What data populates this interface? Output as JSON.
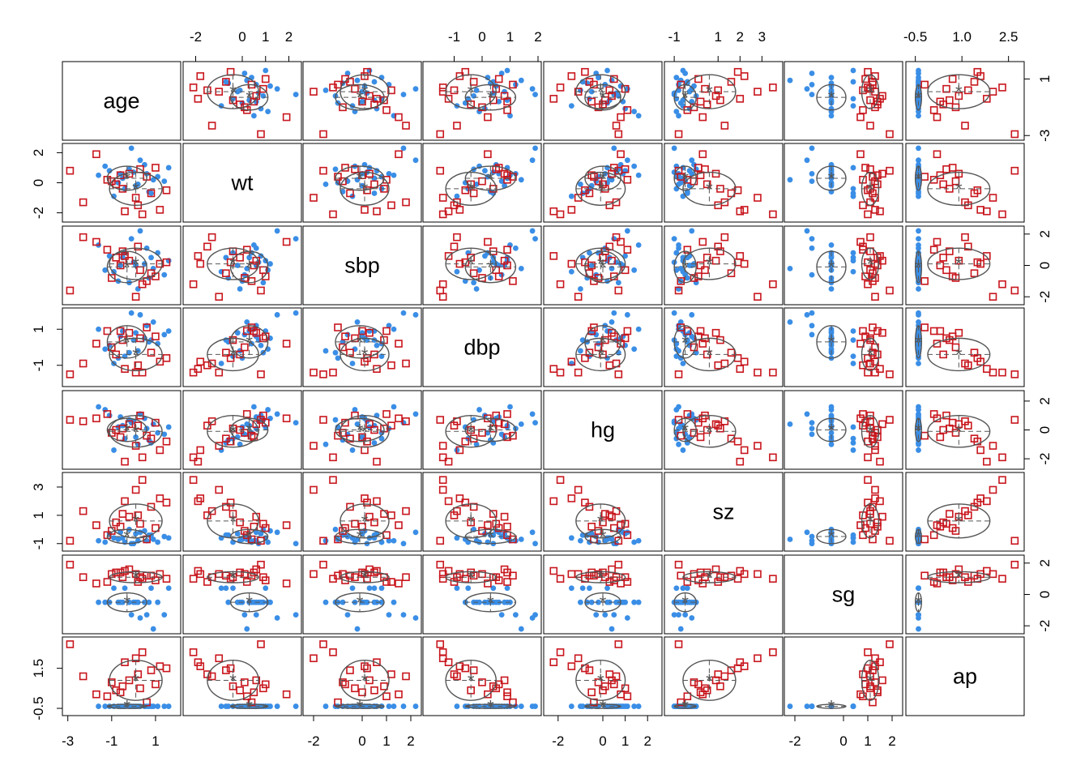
{
  "chart_data": {
    "type": "scatter",
    "title": "",
    "variables": [
      "age",
      "wt",
      "sbp",
      "dbp",
      "hg",
      "sz",
      "sg",
      "ap"
    ],
    "groups": [
      {
        "marker": "filled-circle",
        "color": "#3a8ee6"
      },
      {
        "marker": "open-square",
        "color": "#c8161d"
      }
    ],
    "axes": {
      "age": {
        "range": [
          -3.1,
          2.0
        ],
        "ticks": [
          "-3",
          "-1",
          "1"
        ],
        "tick_values": [
          -3,
          -1,
          1
        ]
      },
      "wt": {
        "range": [
          -2.4,
          2.4
        ],
        "ticks": [
          "-2",
          "0",
          "2"
        ],
        "tick_values": [
          -2,
          0,
          2
        ]
      },
      "sbp": {
        "range": [
          -2.3,
          2.3
        ],
        "ticks": [
          "-2",
          "0",
          "2"
        ],
        "tick_values": [
          -2,
          0,
          2
        ]
      },
      "dbp": {
        "range": [
          -2.0,
          2.0
        ],
        "ticks": [
          "-1",
          "1"
        ],
        "tick_values": [
          -1,
          1
        ]
      },
      "hg": {
        "range": [
          -2.5,
          2.5
        ],
        "ticks": [
          "-2",
          "0",
          "2"
        ],
        "tick_values": [
          -2,
          0,
          2
        ]
      },
      "sz": {
        "range": [
          -1.3,
          3.8
        ],
        "ticks": [
          "-1",
          "1",
          "3"
        ],
        "tick_values": [
          -1,
          1,
          3
        ]
      },
      "sg": {
        "range": [
          -2.3,
          2.3
        ],
        "ticks": [
          "-2",
          "0",
          "2"
        ],
        "tick_values": [
          -2,
          0,
          2
        ]
      },
      "ap": {
        "range": [
          -0.7,
          2.9
        ],
        "ticks": [
          "-0.5",
          "1.5"
        ],
        "tick_values": [
          -0.5,
          1.5
        ]
      }
    },
    "top_axis_ticks": {
      "wt": {
        "labels": [
          "-2",
          "0",
          "1",
          "2"
        ],
        "values": [
          -2,
          0,
          1,
          2
        ]
      },
      "dbp": {
        "labels": [
          "-1",
          "0",
          "1",
          "2"
        ],
        "values": [
          -1,
          0,
          1,
          2
        ]
      },
      "sz": {
        "labels": [
          "-1",
          "1",
          "2",
          "3"
        ],
        "values": [
          -1,
          1,
          2,
          3
        ]
      },
      "ap": {
        "labels": [
          "-0.5",
          "1.0",
          "2.5"
        ],
        "values": [
          -0.5,
          1.0,
          2.5
        ]
      }
    },
    "bottom_axis_ticks": {
      "age": {
        "labels": [
          "-3",
          "-1",
          "1"
        ],
        "values": [
          -3,
          -1,
          1
        ]
      },
      "sbp": {
        "labels": [
          "-2",
          "0",
          "1",
          "2"
        ],
        "values": [
          -2,
          0,
          1,
          2
        ]
      },
      "hg": {
        "labels": [
          "-2",
          "0",
          "1",
          "2"
        ],
        "values": [
          -2,
          0,
          1,
          2
        ]
      },
      "sg": {
        "labels": [
          "-2",
          "0",
          "1",
          "2"
        ],
        "values": [
          -2,
          0,
          1,
          2
        ]
      }
    },
    "left_axis_ticks": {
      "wt": {
        "labels": [
          "-2",
          "0",
          "2"
        ],
        "values": [
          -2,
          0,
          2
        ]
      },
      "dbp": {
        "labels": [
          "-1",
          "1"
        ],
        "values": [
          -1,
          1
        ]
      },
      "sz": {
        "labels": [
          "-1",
          "1",
          "3"
        ],
        "values": [
          -1,
          1,
          3
        ]
      },
      "ap": {
        "labels": [
          "-0.5",
          "1.5"
        ],
        "values": [
          -0.5,
          1.5
        ]
      }
    },
    "right_axis_ticks": {
      "age": {
        "labels": [
          "-3",
          "1"
        ],
        "values": [
          -3,
          1
        ]
      },
      "sbp": {
        "labels": [
          "-2",
          "0",
          "2"
        ],
        "values": [
          -2,
          0,
          2
        ]
      },
      "hg": {
        "labels": [
          "-2",
          "0",
          "2"
        ],
        "values": [
          -2,
          0,
          2
        ]
      },
      "sg": {
        "labels": [
          "-2",
          "0",
          "2"
        ],
        "values": [
          -2,
          0,
          2
        ]
      }
    },
    "group_means": [
      {
        "age": -0.3,
        "wt": 0.3,
        "sbp": -0.1,
        "dbp": 0.3,
        "hg": 0.0,
        "sz": -0.5,
        "sg": -0.5,
        "ap": -0.4
      },
      {
        "age": 0.1,
        "wt": -0.4,
        "sbp": 0.1,
        "dbp": -0.4,
        "hg": -0.1,
        "sz": 0.6,
        "sg": 1.1,
        "ap": 0.9
      }
    ],
    "group_sds": [
      {
        "age": 0.9,
        "wt": 0.8,
        "sbp": 1.0,
        "dbp": 0.9,
        "hg": 0.8,
        "sz": 0.5,
        "sg": 0.6,
        "ap": 0.1
      },
      {
        "age": 1.2,
        "wt": 1.1,
        "sbp": 1.0,
        "dbp": 0.9,
        "hg": 1.1,
        "sz": 1.2,
        "sg": 0.35,
        "ap": 1.0
      }
    ],
    "points": [
      [
        [
          -0.5,
          0.3,
          0.5,
          0.9,
          0.3,
          -0.6,
          -0.5,
          -0.4
        ],
        [
          -1.3,
          1.1,
          -0.3,
          -0.1,
          1.4,
          -0.9,
          -0.5,
          -0.4
        ],
        [
          0.1,
          -0.2,
          0.0,
          0.8,
          -0.5,
          -0.3,
          -0.5,
          -0.4
        ],
        [
          0.6,
          0.6,
          1.1,
          1.2,
          0.1,
          -0.8,
          -1.3,
          -0.4
        ],
        [
          -0.2,
          0.9,
          -1.1,
          -0.3,
          0.7,
          0.0,
          -0.5,
          -0.4
        ],
        [
          0.8,
          -0.7,
          0.5,
          0.4,
          -0.9,
          -0.4,
          0.4,
          -0.4
        ],
        [
          -0.7,
          0.0,
          -1.0,
          -0.6,
          0.2,
          -0.7,
          -0.5,
          -0.4
        ],
        [
          0.3,
          1.5,
          2.2,
          1.8,
          1.1,
          -0.2,
          -1.5,
          -0.4
        ],
        [
          1.1,
          0.4,
          0.8,
          0.2,
          -0.2,
          -0.9,
          -0.5,
          -0.4
        ],
        [
          -0.9,
          -0.9,
          -0.4,
          -0.9,
          -1.4,
          -0.6,
          0.4,
          -0.4
        ],
        [
          0.0,
          0.7,
          0.2,
          0.4,
          0.6,
          -1.0,
          -0.5,
          -0.4
        ],
        [
          1.4,
          0.1,
          -0.6,
          0.7,
          -0.3,
          -0.5,
          -1.3,
          -0.4
        ],
        [
          -1.6,
          0.5,
          1.3,
          1.0,
          1.6,
          -0.8,
          -0.5,
          -0.4
        ],
        [
          0.5,
          1.2,
          0.1,
          0.5,
          0.8,
          -0.1,
          -0.5,
          -0.4
        ],
        [
          -0.4,
          -0.4,
          0.8,
          -0.5,
          -0.6,
          -0.9,
          0.4,
          -0.4
        ],
        [
          0.9,
          0.2,
          -0.2,
          1.4,
          0.4,
          -0.7,
          -2.2,
          -0.4
        ],
        [
          -1.1,
          0.8,
          0.6,
          0.1,
          1.0,
          -0.3,
          -0.5,
          -0.4
        ],
        [
          0.2,
          -0.1,
          -1.5,
          -0.2,
          -1.0,
          -0.8,
          -0.5,
          -0.4
        ],
        [
          1.6,
          1.0,
          0.3,
          0.9,
          0.2,
          -0.6,
          0.4,
          -0.4
        ],
        [
          -0.1,
          2.3,
          1.7,
          1.9,
          0.5,
          -1.0,
          -1.3,
          -0.4
        ],
        [
          0.7,
          -0.6,
          -0.8,
          0.3,
          -0.7,
          -0.4,
          -0.5,
          -0.4
        ],
        [
          -0.6,
          0.6,
          0.0,
          0.6,
          0.9,
          -0.2,
          -0.5,
          -0.4
        ]
      ],
      [
        [
          -2.9,
          0.8,
          -1.6,
          -1.5,
          0.7,
          -0.8,
          1.9,
          2.7
        ],
        [
          -0.5,
          -0.4,
          0.9,
          0.4,
          0.1,
          1.1,
          1.1,
          0.6
        ],
        [
          1.2,
          -1.8,
          0.1,
          -0.8,
          -1.4,
          2.2,
          1.3,
          1.6
        ],
        [
          -1.7,
          1.9,
          1.5,
          0.2,
          0.8,
          0.3,
          0.7,
          0.2
        ],
        [
          0.4,
          -2.1,
          -1.2,
          -1.4,
          -1.9,
          3.5,
          1.0,
          2.3
        ],
        [
          -0.2,
          0.6,
          0.3,
          0.8,
          0.4,
          0.9,
          1.6,
          0.9
        ],
        [
          0.8,
          -0.7,
          -0.5,
          -0.3,
          -0.6,
          1.6,
          1.2,
          1.4
        ],
        [
          -1.2,
          0.2,
          1.0,
          0.9,
          1.1,
          -0.4,
          0.8,
          0.1
        ],
        [
          0.1,
          -1.0,
          -2.0,
          -1.4,
          -1.1,
          2.8,
          1.3,
          2.0
        ],
        [
          -0.8,
          -0.1,
          0.5,
          -0.4,
          0.0,
          0.5,
          1.4,
          0.4
        ],
        [
          1.0,
          1.0,
          -0.7,
          0.6,
          0.5,
          0.1,
          0.9,
          0.7
        ],
        [
          -2.3,
          -1.3,
          1.8,
          -0.9,
          0.6,
          1.3,
          1.1,
          1.1
        ],
        [
          0.6,
          0.4,
          -1.0,
          1.1,
          -0.4,
          -0.7,
          1.2,
          -0.2
        ],
        [
          -0.4,
          -1.9,
          0.6,
          -1.2,
          -2.2,
          2.0,
          1.5,
          1.8
        ],
        [
          0.3,
          0.9,
          -0.3,
          0.5,
          1.0,
          0.4,
          1.1,
          0.5
        ],
        [
          1.5,
          -0.5,
          0.2,
          -0.6,
          -0.8,
          1.9,
          1.0,
          1.5
        ],
        [
          -1.0,
          0.1,
          -0.8,
          0.0,
          -0.2,
          -0.1,
          1.3,
          0.8
        ],
        [
          0.2,
          -1.5,
          1.2,
          -1.0,
          0.3,
          1.0,
          0.8,
          1.2
        ],
        [
          -0.6,
          0.5,
          0.0,
          0.9,
          -0.5,
          0.2,
          1.4,
          0.3
        ]
      ]
    ],
    "grid": false,
    "legend": "none"
  }
}
